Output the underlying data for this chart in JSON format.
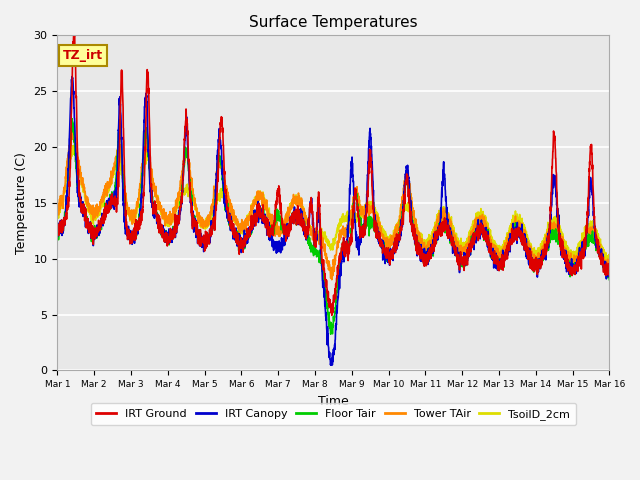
{
  "title": "Surface Temperatures",
  "xlabel": "Time",
  "ylabel": "Temperature (C)",
  "ylim": [
    0,
    30
  ],
  "xlim": [
    0,
    15
  ],
  "background_color": "#e8e8e8",
  "fig_facecolor": "#f2f2f2",
  "grid_color": "#ffffff",
  "annotation_text": "TZ_irt",
  "annotation_bg": "#ffff99",
  "annotation_border": "#aa8800",
  "x_tick_labels": [
    "Mar 1",
    "Mar 2",
    "Mar 3",
    "Mar 4",
    "Mar 5",
    "Mar 6",
    "Mar 7",
    "Mar 8",
    "Mar 9",
    "Mar 10",
    "Mar 11",
    "Mar 12",
    "Mar 13",
    "Mar 14",
    "Mar 15",
    "Mar 16"
  ],
  "series": {
    "IRT Ground": {
      "color": "#dd0000",
      "lw": 1.2
    },
    "IRT Canopy": {
      "color": "#0000cc",
      "lw": 1.2
    },
    "Floor Tair": {
      "color": "#00cc00",
      "lw": 1.2
    },
    "Tower TAir": {
      "color": "#ff8800",
      "lw": 1.2
    },
    "TsoilD_2cm": {
      "color": "#dddd00",
      "lw": 1.2
    }
  }
}
